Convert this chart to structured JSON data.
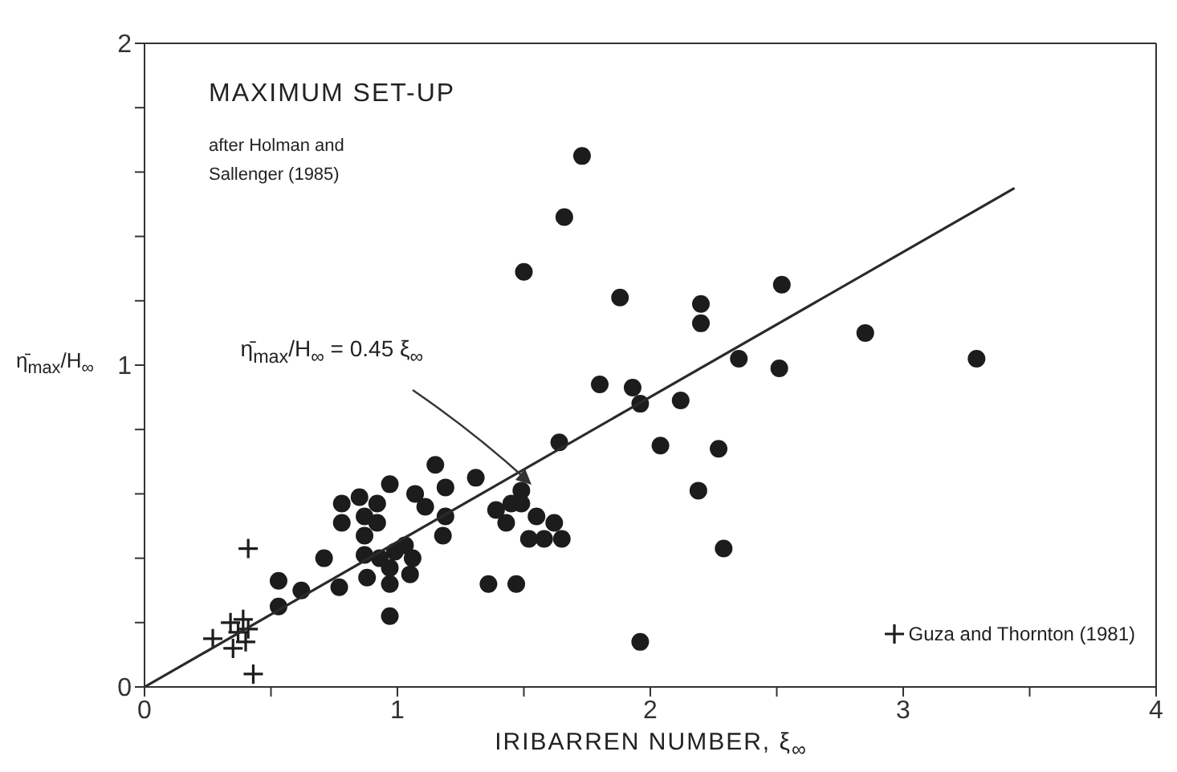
{
  "chart_data": {
    "type": "scatter",
    "title": "MAXIMUM SET-UP",
    "subtitle": "after Holman and Sallenger (1985)",
    "xlabel": "IRIBARREN NUMBER, ξ$_{∞}$",
    "ylabel": "η̄$_{max}$/H$_{∞}$",
    "xlim": [
      0,
      4
    ],
    "ylim": [
      0,
      2
    ],
    "xticks": [
      0,
      {
        "value": 0.5,
        "label": null
      },
      1,
      {
        "value": 1.5,
        "label": null
      },
      2,
      {
        "value": 2.5,
        "label": null
      },
      3,
      {
        "value": 3.5,
        "label": null
      },
      4
    ],
    "yticks": [
      0,
      {
        "value": 0.2,
        "label": null
      },
      {
        "value": 0.4,
        "label": null
      },
      {
        "value": 0.6,
        "label": null
      },
      {
        "value": 0.8,
        "label": null
      },
      1,
      {
        "value": 1.2,
        "label": null
      },
      {
        "value": 1.4,
        "label": null
      },
      {
        "value": 1.6,
        "label": null
      },
      {
        "value": 1.8,
        "label": null
      },
      2
    ],
    "legend": "bottom right",
    "annotations": [
      {
        "text": "η̄$_{max}$/H$_{∞}$ = 0.45 ξ$_{∞}$",
        "x": 1.52,
        "y": 0.63
      }
    ],
    "series": [
      {
        "marker": "circle",
        "color": "#1c1c1c",
        "x": [
          0.53,
          0.53,
          0.62,
          0.71,
          0.77,
          0.78,
          0.78,
          0.85,
          0.92,
          0.87,
          0.92,
          0.87,
          0.87,
          0.93,
          0.88,
          0.97,
          0.97,
          0.97,
          0.97,
          0.99,
          1.03,
          1.06,
          1.05,
          1.07,
          1.11,
          1.15,
          1.19,
          1.19,
          1.18,
          1.31,
          1.36,
          1.73,
          1.66,
          1.5,
          1.88,
          2.2,
          2.2,
          2.52,
          2.51,
          2.35,
          1.8,
          1.93,
          1.96,
          2.12,
          1.64,
          2.04,
          2.27,
          2.19,
          2.29,
          1.96,
          1.47,
          1.49,
          1.45,
          1.39,
          1.49,
          1.55,
          1.62,
          1.43,
          1.52,
          1.58,
          1.65,
          2.85,
          3.29
        ],
        "values": [
          0.33,
          0.25,
          0.3,
          0.4,
          0.31,
          0.57,
          0.51,
          0.59,
          0.57,
          0.53,
          0.51,
          0.47,
          0.41,
          0.4,
          0.34,
          0.63,
          0.22,
          0.37,
          0.32,
          0.42,
          0.44,
          0.4,
          0.35,
          0.6,
          0.56,
          0.69,
          0.62,
          0.53,
          0.47,
          0.65,
          0.32,
          1.65,
          1.46,
          1.29,
          1.21,
          1.19,
          1.13,
          1.25,
          0.99,
          1.02,
          0.94,
          0.93,
          0.88,
          0.89,
          0.76,
          0.75,
          0.74,
          0.61,
          0.43,
          0.14,
          0.32,
          0.61,
          0.57,
          0.55,
          0.57,
          0.53,
          0.51,
          0.51,
          0.46,
          0.46,
          0.46,
          1.1,
          1.02
        ]
      },
      {
        "name": "Guza and Thornton (1981)",
        "marker": "cross",
        "color": "#1c1c1c",
        "x": [
          0.41,
          0.43,
          0.27,
          0.34,
          0.39,
          0.37,
          0.4,
          0.35,
          0.41
        ],
        "values": [
          0.43,
          0.04,
          0.15,
          0.2,
          0.21,
          0.17,
          0.14,
          0.12,
          0.18
        ]
      },
      {
        "type": "line",
        "color": "#2a2a2a",
        "x": [
          0,
          3.44
        ],
        "values": [
          0,
          1.55
        ]
      }
    ]
  }
}
